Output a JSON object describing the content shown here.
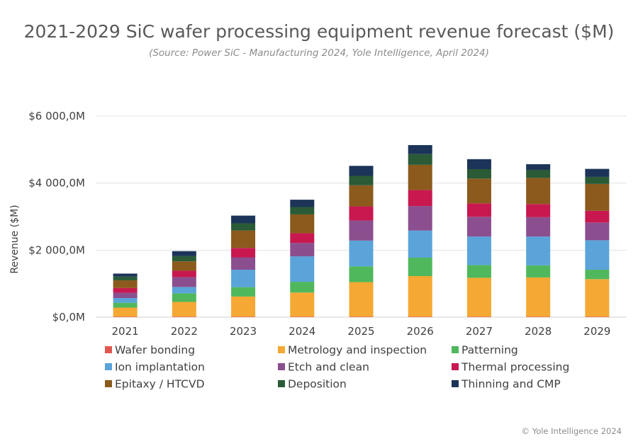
{
  "chart_data": {
    "type": "bar",
    "stacked": true,
    "title": "2021-2029 SiC wafer processing equipment revenue forecast ($M)",
    "subtitle": "(Source: Power SiC - Manufacturing 2024, Yole Intelligence, April 2024)",
    "xlabel": "",
    "ylabel": "Revenue ($M)",
    "ylim": [
      0,
      6000
    ],
    "yticks": [
      0,
      2000,
      4000,
      6000
    ],
    "ytick_labels": [
      "$0,0M",
      "$2 000,0M",
      "$4 000,0M",
      "$6 000,0M"
    ],
    "grid": true,
    "legend_position": "bottom",
    "categories": [
      "2021",
      "2022",
      "2023",
      "2024",
      "2025",
      "2026",
      "2027",
      "2028",
      "2029"
    ],
    "series": [
      {
        "name": "Wafer bonding",
        "color": "#e0584f",
        "values": [
          15,
          15,
          15,
          15,
          15,
          15,
          15,
          15,
          15
        ]
      },
      {
        "name": "Metrology and inspection",
        "color": "#f5a833",
        "values": [
          270,
          440,
          600,
          720,
          1030,
          1210,
          1160,
          1170,
          1120
        ]
      },
      {
        "name": "Patterning",
        "color": "#4fb85c",
        "values": [
          145,
          255,
          280,
          320,
          470,
          550,
          380,
          360,
          280
        ]
      },
      {
        "name": "Ion implantation",
        "color": "#5aa4da",
        "values": [
          140,
          190,
          520,
          760,
          770,
          810,
          850,
          860,
          880
        ]
      },
      {
        "name": "Etch and clean",
        "color": "#8b4f8f",
        "values": [
          160,
          295,
          370,
          400,
          600,
          730,
          590,
          580,
          530
        ]
      },
      {
        "name": "Thermal processing",
        "color": "#c8184f",
        "values": [
          140,
          190,
          280,
          290,
          420,
          480,
          400,
          390,
          350
        ]
      },
      {
        "name": "Epitaxy / HTCVD",
        "color": "#8b5a1c",
        "values": [
          230,
          280,
          520,
          560,
          630,
          750,
          740,
          780,
          800
        ]
      },
      {
        "name": "Deposition",
        "color": "#2a5a36",
        "values": [
          110,
          155,
          215,
          220,
          280,
          320,
          280,
          240,
          210
        ]
      },
      {
        "name": "Thinning and CMP",
        "color": "#1c3458",
        "values": [
          90,
          150,
          230,
          220,
          300,
          270,
          300,
          170,
          240
        ]
      }
    ]
  },
  "copyright": "© Yole Intelligence 2024"
}
